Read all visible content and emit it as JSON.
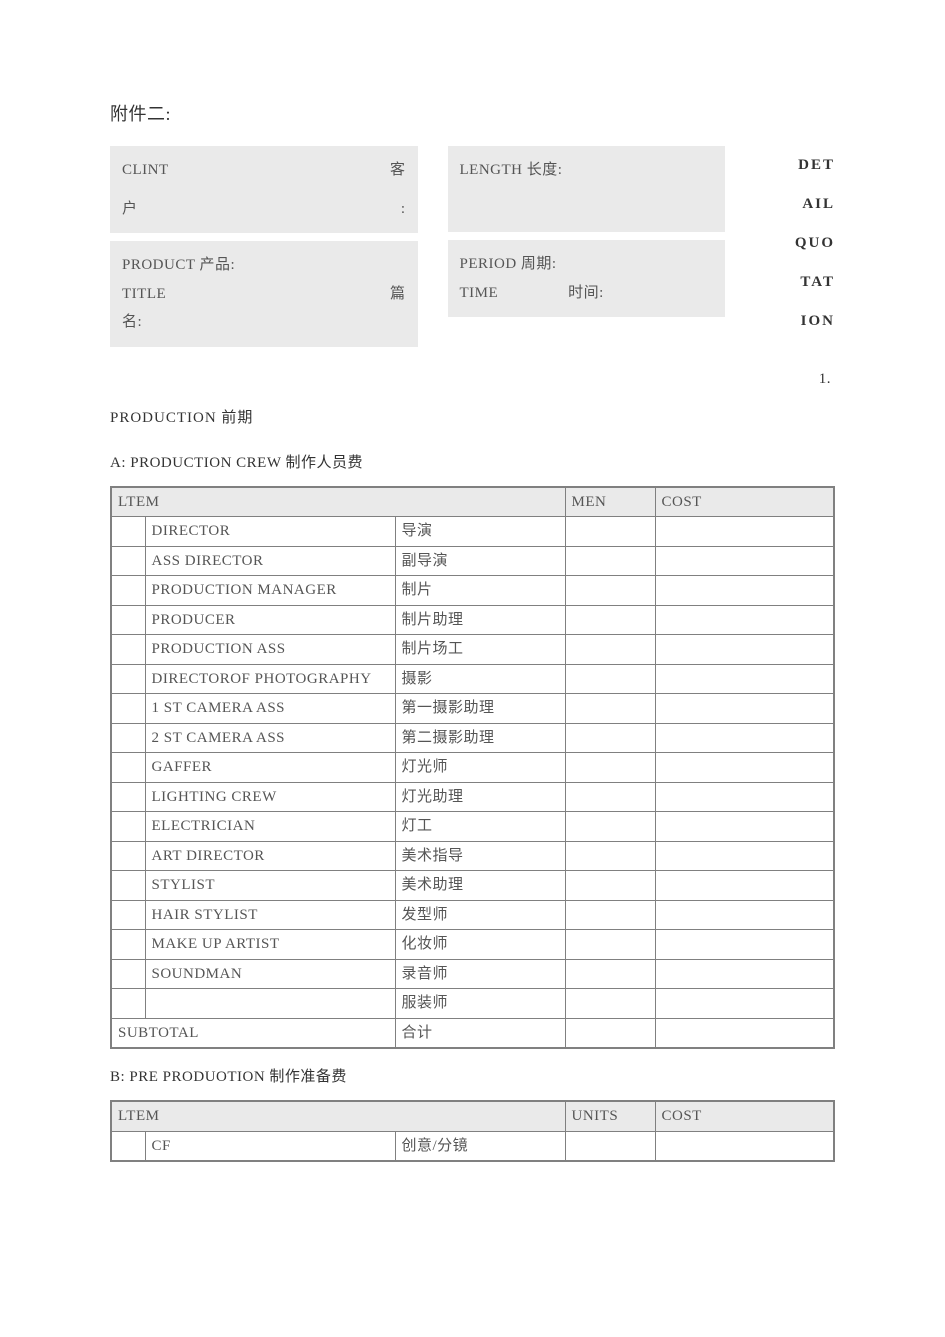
{
  "colors": {
    "bg": "#ffffff",
    "box_bg": "#eaeaea",
    "text": "#333333",
    "cell_text": "#555555",
    "border": "#808080"
  },
  "typography": {
    "font_family": "SimSun / 宋体",
    "base_fontsize_pt": 11,
    "title_fontsize_pt": 14,
    "bold_right_col": true
  },
  "attachment_title": "附件二:",
  "header": {
    "left": {
      "row1_label": "CLINT",
      "row1_cn": "客",
      "row2_label": "户",
      "row2_colon": ":",
      "product": "PRODUCT 产品:",
      "title_label": "TITLE",
      "title_cn": "篇",
      "title_line2": "名:"
    },
    "mid": {
      "length": "LENGTH 长度:",
      "period": "PERIOD 周期:",
      "time_label": "TIME",
      "time_cn": "时间:"
    },
    "right": {
      "l1": "DET",
      "l2": "AIL",
      "l3": "QUO",
      "l4": "TAT",
      "l5": "ION",
      "num": "1."
    }
  },
  "production_heading": "PRODUCTION   前期",
  "section_a": {
    "heading": "A:  PRODUCTION CREW   制作人员费",
    "columns": {
      "item": "LTEM",
      "units": "MEN",
      "cost": "COST"
    },
    "rows": [
      {
        "en": "DIRECTOR",
        "cn": "导演"
      },
      {
        "en": "ASS DIRECTOR",
        "cn": "副导演"
      },
      {
        "en": "PRODUCTION  MANAGER",
        "cn": "制片"
      },
      {
        "en": "PRODUCER",
        "cn": "制片助理"
      },
      {
        "en": "PRODUCTION ASS",
        "cn": "制片场工"
      },
      {
        "en": "DIRECTOROF PHOTOGRAPHY",
        "cn": "摄影"
      },
      {
        "en": "1 ST CAMERA ASS",
        "cn": "第一摄影助理"
      },
      {
        "en": "2 ST CAMERA ASS",
        "cn": "第二摄影助理"
      },
      {
        "en": "GAFFER",
        "cn": "灯光师"
      },
      {
        "en": "LIGHTING CREW",
        "cn": "灯光助理"
      },
      {
        "en": "ELECTRICIAN",
        "cn": "灯工"
      },
      {
        "en": "ART DIRECTOR",
        "cn": "美术指导"
      },
      {
        "en": "STYLIST",
        "cn": "美术助理"
      },
      {
        "en": "HAIR STYLIST",
        "cn": "发型师"
      },
      {
        "en": "MAKE UP ARTIST",
        "cn": "化妆师"
      },
      {
        "en": "SOUNDMAN",
        "cn": "录音师"
      },
      {
        "en": "",
        "cn": "服装师"
      }
    ],
    "subtotal_en": "SUBTOTAL",
    "subtotal_cn": "合计"
  },
  "section_b": {
    "heading": "B: PRE PRODUOTION 制作准备费",
    "columns": {
      "item": "LTEM",
      "units": "UNITS",
      "cost": "COST"
    },
    "rows": [
      {
        "en": "CF",
        "cn": "创意/分镜"
      }
    ]
  }
}
